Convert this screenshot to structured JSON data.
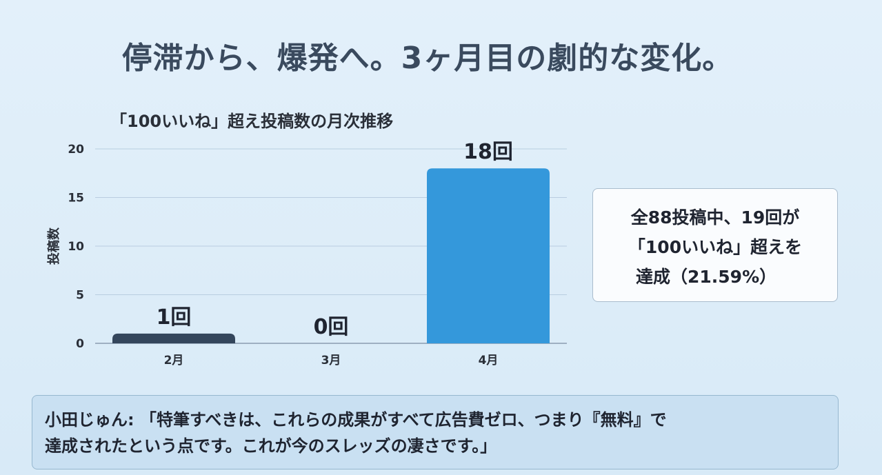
{
  "headline": "停滞から、爆発へ。3ヶ月目の劇的な変化。",
  "chart_data": {
    "type": "bar",
    "title": "「100いいね」超え投稿数の月次推移",
    "xlabel": "",
    "ylabel": "投稿数",
    "categories": [
      "2月",
      "3月",
      "4月"
    ],
    "values": [
      1,
      0,
      18
    ],
    "data_labels": [
      "1回",
      "0回",
      "18回"
    ],
    "bar_colors": [
      "#34465c",
      "#34465c",
      "#3498db"
    ],
    "ylim": [
      0,
      20
    ],
    "yticks": [
      0,
      5,
      10,
      15,
      20
    ],
    "grid": true,
    "legend": "none"
  },
  "callout": {
    "line1": "全88投稿中、19回が",
    "line2": "「100いいね」超えを",
    "line3": "達成（21.59%）"
  },
  "quote": {
    "line1": "小田じゅん: 「特筆すべきは、これらの成果がすべて広告費ゼロ、つまり『無料』で",
    "line2": "達成されたという点です。これが今のスレッズの凄さです。」"
  }
}
